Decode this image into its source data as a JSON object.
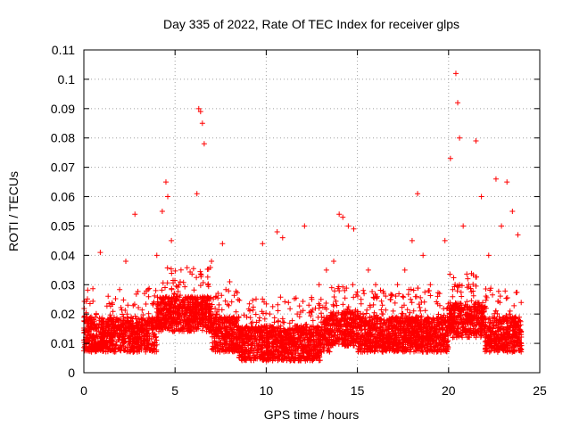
{
  "chart_data": {
    "type": "scatter",
    "title": "Day 335 of 2022, Rate Of TEC Index for receiver glps",
    "xlabel": "GPS time / hours",
    "ylabel": "ROTI / TECUs",
    "xlim": [
      0,
      25
    ],
    "ylim": [
      0,
      0.11
    ],
    "xticks": [
      "0",
      "5",
      "10",
      "15",
      "20",
      "25"
    ],
    "yticks": [
      "0",
      "0.01",
      "0.02",
      "0.03",
      "0.04",
      "0.05",
      "0.06",
      "0.07",
      "0.08",
      "0.09",
      "0.1",
      "0.11"
    ],
    "grid": true,
    "marker": "+",
    "color": "#ff0000",
    "series": [
      {
        "x": [
          0.2,
          0.5,
          0.9,
          1.3,
          1.8,
          2.3,
          2.8,
          3.2,
          3.6,
          4.0,
          4.3,
          4.5,
          4.6,
          4.8,
          5.0,
          5.2,
          5.5,
          5.8,
          6.0,
          6.2,
          6.3,
          6.4,
          6.5,
          6.6,
          6.8,
          7.0,
          7.3,
          7.6,
          8.0,
          8.3,
          8.7,
          9.0,
          9.4,
          9.8,
          10.2,
          10.6,
          10.9,
          11.3,
          11.7,
          12.1,
          12.5,
          12.9,
          13.3,
          13.7,
          14.0,
          14.2,
          14.5,
          14.8,
          15.2,
          15.6,
          16.0,
          16.4,
          16.8,
          17.2,
          17.6,
          18.0,
          18.3,
          18.6,
          19.0,
          19.4,
          19.8,
          20.1,
          20.4,
          20.5,
          20.6,
          20.8,
          21.1,
          21.5,
          21.8,
          22.2,
          22.6,
          22.9,
          23.2,
          23.5,
          23.8
        ],
        "y": [
          0.013,
          0.012,
          0.041,
          0.016,
          0.015,
          0.038,
          0.054,
          0.018,
          0.017,
          0.04,
          0.055,
          0.065,
          0.06,
          0.045,
          0.02,
          0.022,
          0.018,
          0.021,
          0.024,
          0.061,
          0.09,
          0.089,
          0.085,
          0.078,
          0.03,
          0.038,
          0.02,
          0.044,
          0.031,
          0.018,
          0.015,
          0.012,
          0.014,
          0.044,
          0.02,
          0.048,
          0.046,
          0.015,
          0.02,
          0.05,
          0.025,
          0.03,
          0.035,
          0.038,
          0.054,
          0.053,
          0.05,
          0.049,
          0.025,
          0.035,
          0.03,
          0.02,
          0.025,
          0.03,
          0.035,
          0.045,
          0.061,
          0.04,
          0.03,
          0.026,
          0.045,
          0.073,
          0.102,
          0.092,
          0.08,
          0.05,
          0.03,
          0.079,
          0.06,
          0.04,
          0.066,
          0.05,
          0.065,
          0.055,
          0.047
        ]
      }
    ]
  }
}
